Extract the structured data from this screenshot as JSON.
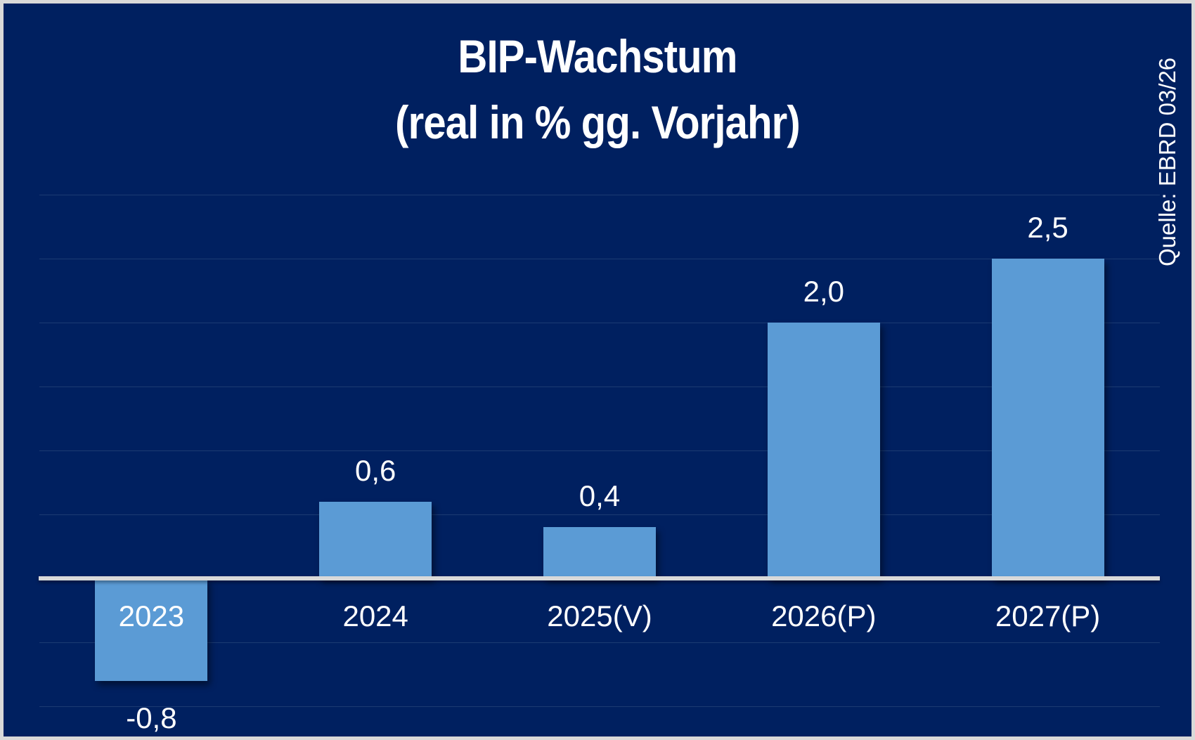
{
  "frame": {
    "background_color": "#002060",
    "border_color": "#D9D9D9"
  },
  "title": {
    "line1": "BIP-Wachstum",
    "line2": "(real in % gg. Vorjahr)"
  },
  "source_note": "Quelle: EBRD 03/26",
  "chart_data": {
    "type": "bar",
    "title": "BIP-Wachstum (real in % gg. Vorjahr)",
    "categories": [
      "2023",
      "2024",
      "2025(V)",
      "2026(P)",
      "2027(P)"
    ],
    "values": [
      -0.8,
      0.6,
      0.4,
      2.0,
      2.5
    ],
    "value_labels": [
      "-0,8",
      "0,6",
      "0,4",
      "2,0",
      "2,5"
    ],
    "xlabel": "",
    "ylabel": "",
    "unit": "% gg. Vorjahr",
    "ylim": [
      -1.0,
      3.0
    ],
    "grid_step": 0.5,
    "grid_values": [
      3.0,
      2.5,
      2.0,
      1.5,
      1.0,
      0.5,
      -0.5,
      -1.0
    ],
    "grid_on": true,
    "legend": false,
    "bar_color": "#5B9BD5",
    "axis_line_color": "#D9D9D9",
    "label_color": "#FFFFFF"
  }
}
